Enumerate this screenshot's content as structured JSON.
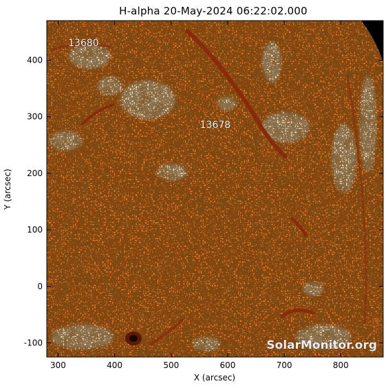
{
  "title": "H-alpha 20-May-2024 06:22:02.000",
  "x_axis": {
    "label": "X (arcsec)",
    "range": [
      280,
      875
    ],
    "ticks": [
      300,
      400,
      500,
      600,
      700,
      800
    ]
  },
  "y_axis": {
    "label": "Y (arcsec)",
    "range": [
      -125,
      470
    ],
    "ticks": [
      -100,
      0,
      100,
      200,
      300,
      400
    ]
  },
  "regions": [
    {
      "label": "13680",
      "x": 345,
      "y": 425
    },
    {
      "label": "13678",
      "x": 578,
      "y": 280
    }
  ],
  "watermark": "SolarMonitor.org",
  "colors": {
    "solar_base": "#e8782a",
    "solar_bright": "#fbe4c6",
    "filament": "#8a2a0a",
    "space": "#000000"
  }
}
